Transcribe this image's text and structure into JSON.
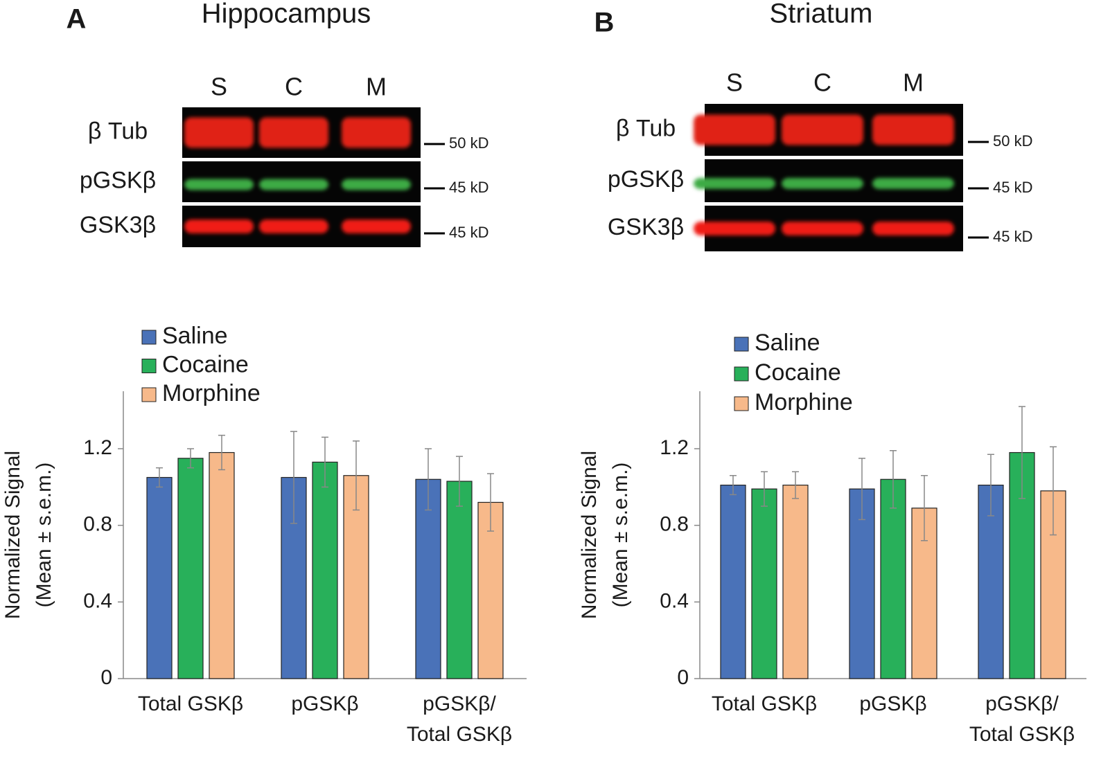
{
  "blots": [
    {
      "panel_label": "A",
      "title": "Hippocampus",
      "lanes": [
        "S",
        "C",
        "M"
      ],
      "rows": [
        {
          "label": "β Tub",
          "marker": "50 kD"
        },
        {
          "label": "pGSKβ",
          "marker": "45 kD"
        },
        {
          "label": "GSK3β",
          "marker": "45 kD"
        }
      ]
    },
    {
      "panel_label": "B",
      "title": "Striatum",
      "lanes": [
        "S",
        "C",
        "M"
      ],
      "rows": [
        {
          "label": "β Tub",
          "marker": "50 kD"
        },
        {
          "label": "pGSKβ",
          "marker": "45 kD"
        },
        {
          "label": "GSK3β",
          "marker": "45 kD"
        }
      ]
    }
  ],
  "chart_data": [
    {
      "type": "bar",
      "y_label": [
        "Normalized Signal",
        "(Mean ± s.e.m.)"
      ],
      "categories": [
        "Total GSKβ",
        "pGSKβ",
        [
          "pGSKβ/",
          "Total GSKβ"
        ]
      ],
      "series": [
        {
          "name": "Saline",
          "color": "#4a72b8",
          "values": [
            1.05,
            1.05,
            1.04
          ],
          "errors": [
            0.05,
            0.24,
            0.16
          ]
        },
        {
          "name": "Cocaine",
          "color": "#28b05a",
          "values": [
            1.15,
            1.13,
            1.03
          ],
          "errors": [
            0.05,
            0.13,
            0.13
          ]
        },
        {
          "name": "Morphine",
          "color": "#f7b98a",
          "values": [
            1.18,
            1.06,
            0.92
          ],
          "errors": [
            0.09,
            0.18,
            0.15
          ]
        }
      ],
      "ylim": [
        0,
        1.5
      ],
      "yticks": [
        0,
        0.4,
        0.8,
        1.2
      ],
      "legend": "top-left"
    },
    {
      "type": "bar",
      "y_label": [
        "Normalized Signal",
        "(Mean ± s.e.m.)"
      ],
      "categories": [
        "Total GSKβ",
        "pGSKβ",
        [
          "pGSKβ/",
          "Total GSKβ"
        ]
      ],
      "series": [
        {
          "name": "Saline",
          "color": "#4a72b8",
          "values": [
            1.01,
            0.99,
            1.01
          ],
          "errors": [
            0.05,
            0.16,
            0.16
          ]
        },
        {
          "name": "Cocaine",
          "color": "#28b05a",
          "values": [
            0.99,
            1.04,
            1.18
          ],
          "errors": [
            0.09,
            0.15,
            0.24
          ]
        },
        {
          "name": "Morphine",
          "color": "#f7b98a",
          "values": [
            1.01,
            0.89,
            0.98
          ],
          "errors": [
            0.07,
            0.17,
            0.23
          ]
        }
      ],
      "ylim": [
        0,
        1.5
      ],
      "yticks": [
        0,
        0.4,
        0.8,
        1.2
      ],
      "legend": "top-left"
    }
  ]
}
